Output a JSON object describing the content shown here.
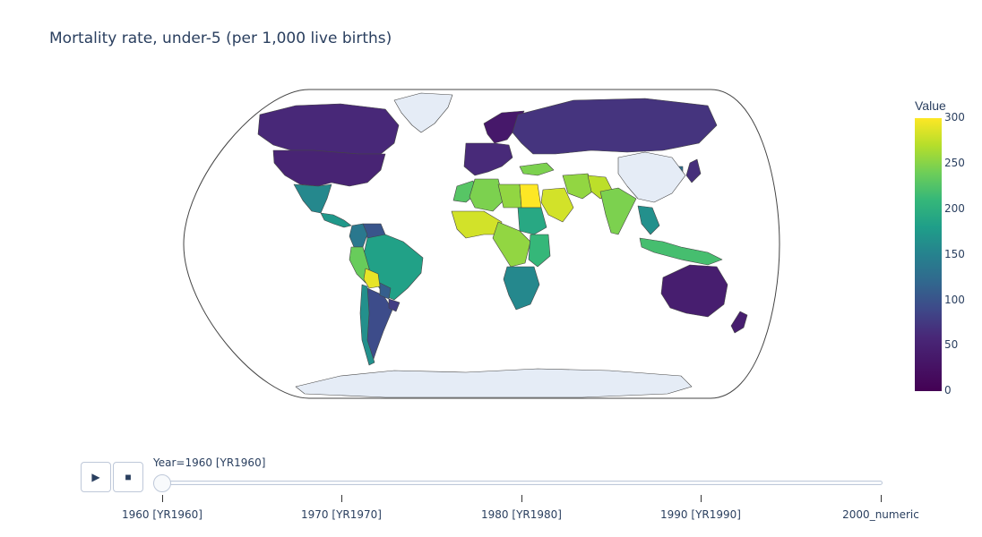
{
  "title": "Mortality rate, under-5 (per 1,000 live births)",
  "colorbar": {
    "title": "Value",
    "ticks": [
      "300",
      "250",
      "200",
      "150",
      "100",
      "50",
      "0"
    ],
    "range": [
      0,
      300
    ],
    "colorscale": "viridis"
  },
  "map": {
    "projection": "natural earth",
    "land_color": "#e5ecf6",
    "border_color": "#444444"
  },
  "chart_data": {
    "type": "choropleth",
    "title": "Mortality rate, under-5 (per 1,000 live births)",
    "frame": "1960 [YR1960]",
    "colorbar_title": "Value",
    "range": [
      0,
      300
    ],
    "regions": [
      {
        "name": "Canada",
        "value": 33
      },
      {
        "name": "United States",
        "value": 30
      },
      {
        "name": "Mexico",
        "value": 140
      },
      {
        "name": "Central America",
        "value": 160
      },
      {
        "name": "Venezuela",
        "value": 80
      },
      {
        "name": "Colombia",
        "value": 120
      },
      {
        "name": "Brazil",
        "value": 170
      },
      {
        "name": "Peru",
        "value": 230
      },
      {
        "name": "Bolivia",
        "value": 290
      },
      {
        "name": "Argentina",
        "value": 70
      },
      {
        "name": "Chile",
        "value": 150
      },
      {
        "name": "Paraguay",
        "value": 90
      },
      {
        "name": "Uruguay",
        "value": 55
      },
      {
        "name": "Europe (West)",
        "value": 35
      },
      {
        "name": "Scandinavia",
        "value": 20
      },
      {
        "name": "Russia",
        "value": 45
      },
      {
        "name": "Turkey",
        "value": 240
      },
      {
        "name": "Morocco",
        "value": 220
      },
      {
        "name": "Algeria",
        "value": 240
      },
      {
        "name": "Libya",
        "value": 250
      },
      {
        "name": "Egypt",
        "value": 300
      },
      {
        "name": "Sudan",
        "value": 180
      },
      {
        "name": "West Africa",
        "value": 280
      },
      {
        "name": "Central Africa",
        "value": 250
      },
      {
        "name": "Kenya",
        "value": 200
      },
      {
        "name": "Southern Africa",
        "value": 140
      },
      {
        "name": "Saudi Arabia",
        "value": 280
      },
      {
        "name": "Iran",
        "value": 250
      },
      {
        "name": "Pakistan",
        "value": 270
      },
      {
        "name": "India",
        "value": 240
      },
      {
        "name": "Southeast Asia",
        "value": 150
      },
      {
        "name": "Indonesia",
        "value": 210
      },
      {
        "name": "Japan",
        "value": 40
      },
      {
        "name": "Korea",
        "value": 110
      },
      {
        "name": "Australia",
        "value": 25
      },
      {
        "name": "New Zealand",
        "value": 25
      },
      {
        "name": "Greenland",
        "value": null
      },
      {
        "name": "China",
        "value": null
      },
      {
        "name": "Antarctica",
        "value": null
      }
    ]
  },
  "controls": {
    "play_icon": "play-icon",
    "stop_icon": "stop-icon",
    "current_label": "Year=1960 [YR1960]",
    "steps": [
      "1960 [YR1960]",
      "1970 [YR1970]",
      "1980 [YR1980]",
      "1990 [YR1990]",
      "2000_numeric"
    ],
    "current_index": 0
  }
}
